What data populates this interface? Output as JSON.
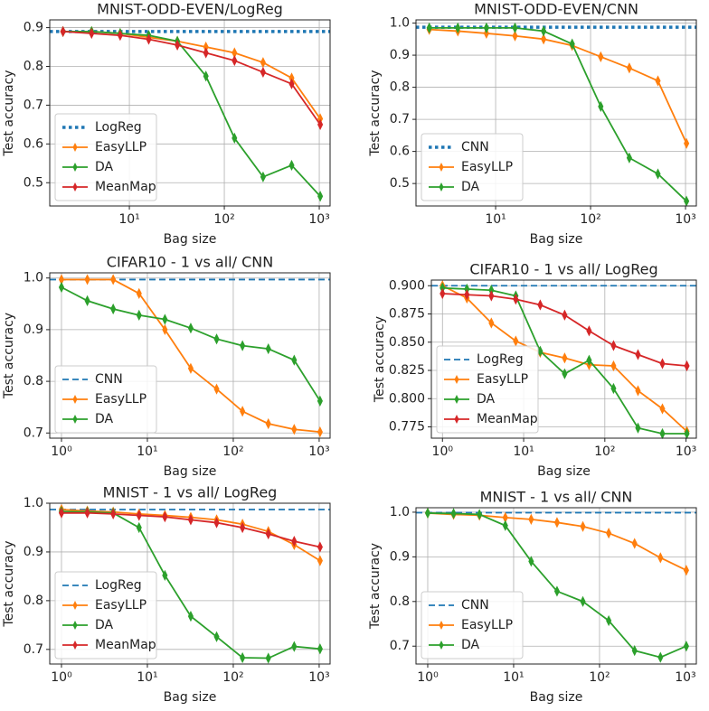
{
  "chart_data": [
    {
      "type": "line",
      "title": "MNIST-ODD-EVEN/LogReg",
      "xlabel": "Bag size",
      "ylabel": "Test accuracy",
      "xscale": "log",
      "grid": true,
      "legend": "lower left",
      "x": [
        2,
        4,
        8,
        16,
        32,
        64,
        128,
        256,
        512,
        1024
      ],
      "xlim": [
        1.45,
        1300
      ],
      "xticks": [
        {
          "value": 10,
          "label": "10¹"
        },
        {
          "value": 100,
          "label": "10²"
        },
        {
          "value": 1000,
          "label": "10³"
        }
      ],
      "ylim": [
        0.44,
        0.92
      ],
      "yticks": [
        0.5,
        0.6,
        0.7,
        0.8,
        0.9
      ],
      "series": [
        {
          "name": "LogReg",
          "color": "#1f77b4",
          "linestyle": "dotted",
          "value": 0.89
        },
        {
          "name": "EasyLLP",
          "color": "#ff7f0e",
          "values": [
            0.89,
            0.89,
            0.885,
            0.875,
            0.865,
            0.85,
            0.835,
            0.81,
            0.77,
            0.665
          ]
        },
        {
          "name": "DA",
          "color": "#2ca02c",
          "values": [
            0.89,
            0.89,
            0.885,
            0.88,
            0.865,
            0.775,
            0.615,
            0.515,
            0.545,
            0.465
          ]
        },
        {
          "name": "MeanMap",
          "color": "#d62728",
          "values": [
            0.89,
            0.885,
            0.88,
            0.87,
            0.855,
            0.835,
            0.815,
            0.785,
            0.755,
            0.65
          ]
        }
      ]
    },
    {
      "type": "line",
      "title": "MNIST-ODD-EVEN/CNN",
      "xlabel": "Bag size",
      "ylabel": "Test accuracy",
      "xscale": "log",
      "grid": true,
      "legend": "lower left",
      "x": [
        2,
        4,
        8,
        16,
        32,
        64,
        128,
        256,
        512,
        1024
      ],
      "xlim": [
        1.45,
        1300
      ],
      "xticks": [
        {
          "value": 10,
          "label": "10¹"
        },
        {
          "value": 100,
          "label": "10²"
        },
        {
          "value": 1000,
          "label": "10³"
        }
      ],
      "ylim": [
        0.43,
        1.01
      ],
      "yticks": [
        0.5,
        0.6,
        0.7,
        0.8,
        0.9,
        {
          "value": 1,
          "label": "1.0"
        }
      ],
      "series": [
        {
          "name": "CNN",
          "color": "#1f77b4",
          "linestyle": "dotted",
          "value": 0.987
        },
        {
          "name": "EasyLLP",
          "color": "#ff7f0e",
          "values": [
            0.98,
            0.975,
            0.968,
            0.96,
            0.95,
            0.93,
            0.895,
            0.86,
            0.82,
            0.625
          ]
        },
        {
          "name": "DA",
          "color": "#2ca02c",
          "values": [
            0.985,
            0.985,
            0.985,
            0.985,
            0.975,
            0.935,
            0.74,
            0.58,
            0.53,
            0.445
          ]
        }
      ]
    },
    {
      "type": "line",
      "title": "CIFAR10 - 1 vs all/ CNN",
      "xlabel": "Bag size",
      "ylabel": "Test accuracy",
      "xscale": "log",
      "grid": true,
      "legend": "lower left",
      "x": [
        1,
        2,
        4,
        8,
        16,
        32,
        64,
        128,
        256,
        512,
        1024
      ],
      "xlim": [
        0.73,
        1340
      ],
      "xticks": [
        {
          "value": 1,
          "label": "10⁰"
        },
        {
          "value": 10,
          "label": "10¹"
        },
        {
          "value": 100,
          "label": "10²"
        },
        {
          "value": 1000,
          "label": "10³"
        }
      ],
      "ylim": [
        0.69,
        1.01
      ],
      "yticks": [
        0.7,
        0.8,
        0.9,
        {
          "value": 1,
          "label": "1.0"
        }
      ],
      "series": [
        {
          "name": "CNN",
          "color": "#1f77b4",
          "linestyle": "dashed",
          "value": 0.997
        },
        {
          "name": "EasyLLP",
          "color": "#ff7f0e",
          "values": [
            0.997,
            0.997,
            0.997,
            0.97,
            0.9,
            0.825,
            0.785,
            0.742,
            0.718,
            0.707,
            0.702
          ]
        },
        {
          "name": "DA",
          "color": "#2ca02c",
          "values": [
            0.982,
            0.956,
            0.94,
            0.928,
            0.92,
            0.903,
            0.882,
            0.869,
            0.863,
            0.841,
            0.762
          ]
        }
      ]
    },
    {
      "type": "line",
      "title": "CIFAR10 - 1 vs all/ LogReg",
      "xlabel": "Bag size",
      "ylabel": "Test accuracy",
      "xscale": "log",
      "grid": true,
      "legend": "lower left",
      "x": [
        1,
        2,
        4,
        8,
        16,
        32,
        64,
        128,
        256,
        512,
        1024
      ],
      "xlim": [
        0.73,
        1340
      ],
      "xticks": [
        {
          "value": 1,
          "label": "10⁰"
        },
        {
          "value": 10,
          "label": "10¹"
        },
        {
          "value": 100,
          "label": "10²"
        },
        {
          "value": 1000,
          "label": "10³"
        }
      ],
      "ylim": [
        0.765,
        0.905
      ],
      "yticks": [
        {
          "value": 0.775,
          "label": "0.775"
        },
        {
          "value": 0.8,
          "label": "0.800"
        },
        {
          "value": 0.825,
          "label": "0.825"
        },
        {
          "value": 0.85,
          "label": "0.850"
        },
        {
          "value": 0.875,
          "label": "0.875"
        },
        {
          "value": 0.9,
          "label": "0.900"
        }
      ],
      "series": [
        {
          "name": "LogReg",
          "color": "#1f77b4",
          "linestyle": "dashed",
          "value": 0.9
        },
        {
          "name": "EasyLLP",
          "color": "#ff7f0e",
          "values": [
            0.9,
            0.889,
            0.867,
            0.851,
            0.841,
            0.836,
            0.83,
            0.829,
            0.807,
            0.791,
            0.771
          ]
        },
        {
          "name": "DA",
          "color": "#2ca02c",
          "values": [
            0.898,
            0.897,
            0.896,
            0.891,
            0.842,
            0.822,
            0.834,
            0.809,
            0.774,
            0.769,
            0.769
          ]
        },
        {
          "name": "MeanMap",
          "color": "#d62728",
          "values": [
            0.893,
            0.892,
            0.891,
            0.888,
            0.883,
            0.874,
            0.86,
            0.847,
            0.839,
            0.831,
            0.829
          ]
        }
      ]
    },
    {
      "type": "line",
      "title": "MNIST - 1 vs all/ LogReg",
      "xlabel": "Bag size",
      "ylabel": "Test accuracy",
      "xscale": "log",
      "grid": true,
      "legend": "lower left",
      "x": [
        1,
        2,
        4,
        8,
        16,
        32,
        64,
        128,
        256,
        512,
        1024
      ],
      "xlim": [
        0.73,
        1340
      ],
      "xticks": [
        {
          "value": 1,
          "label": "10⁰"
        },
        {
          "value": 10,
          "label": "10¹"
        },
        {
          "value": 100,
          "label": "10²"
        },
        {
          "value": 1000,
          "label": "10³"
        }
      ],
      "ylim": [
        0.67,
        1.0
      ],
      "yticks": [
        0.7,
        0.8,
        0.9,
        {
          "value": 1,
          "label": "1.0"
        }
      ],
      "series": [
        {
          "name": "LogReg",
          "color": "#1f77b4",
          "linestyle": "dashed",
          "value": 0.987
        },
        {
          "name": "EasyLLP",
          "color": "#ff7f0e",
          "values": [
            0.987,
            0.984,
            0.982,
            0.978,
            0.975,
            0.971,
            0.966,
            0.957,
            0.942,
            0.915,
            0.882
          ]
        },
        {
          "name": "DA",
          "color": "#2ca02c",
          "values": [
            0.983,
            0.982,
            0.98,
            0.95,
            0.852,
            0.768,
            0.726,
            0.683,
            0.682,
            0.706,
            0.701
          ]
        },
        {
          "name": "MeanMap",
          "color": "#d62728",
          "values": [
            0.98,
            0.98,
            0.978,
            0.975,
            0.972,
            0.966,
            0.96,
            0.95,
            0.937,
            0.922,
            0.91
          ]
        }
      ]
    },
    {
      "type": "line",
      "title": "MNIST - 1 vs all/ CNN",
      "xlabel": "Bag size",
      "ylabel": "Test accuracy",
      "xscale": "log",
      "grid": true,
      "legend": "lower left",
      "x": [
        1,
        2,
        4,
        8,
        16,
        32,
        64,
        128,
        256,
        512,
        1024
      ],
      "xlim": [
        0.73,
        1340
      ],
      "xticks": [
        {
          "value": 1,
          "label": "10⁰"
        },
        {
          "value": 10,
          "label": "10¹"
        },
        {
          "value": 100,
          "label": "10²"
        },
        {
          "value": 1000,
          "label": "10³"
        }
      ],
      "ylim": [
        0.66,
        1.01
      ],
      "yticks": [
        0.7,
        0.8,
        0.9,
        {
          "value": 1,
          "label": "1.0"
        }
      ],
      "series": [
        {
          "name": "CNN",
          "color": "#1f77b4",
          "linestyle": "dashed",
          "value": 0.999
        },
        {
          "name": "EasyLLP",
          "color": "#ff7f0e",
          "values": [
            0.998,
            0.995,
            0.993,
            0.988,
            0.984,
            0.977,
            0.968,
            0.953,
            0.93,
            0.898,
            0.87
          ]
        },
        {
          "name": "DA",
          "color": "#2ca02c",
          "values": [
            0.998,
            0.997,
            0.995,
            0.97,
            0.89,
            0.823,
            0.8,
            0.757,
            0.69,
            0.675,
            0.7
          ]
        }
      ]
    }
  ]
}
